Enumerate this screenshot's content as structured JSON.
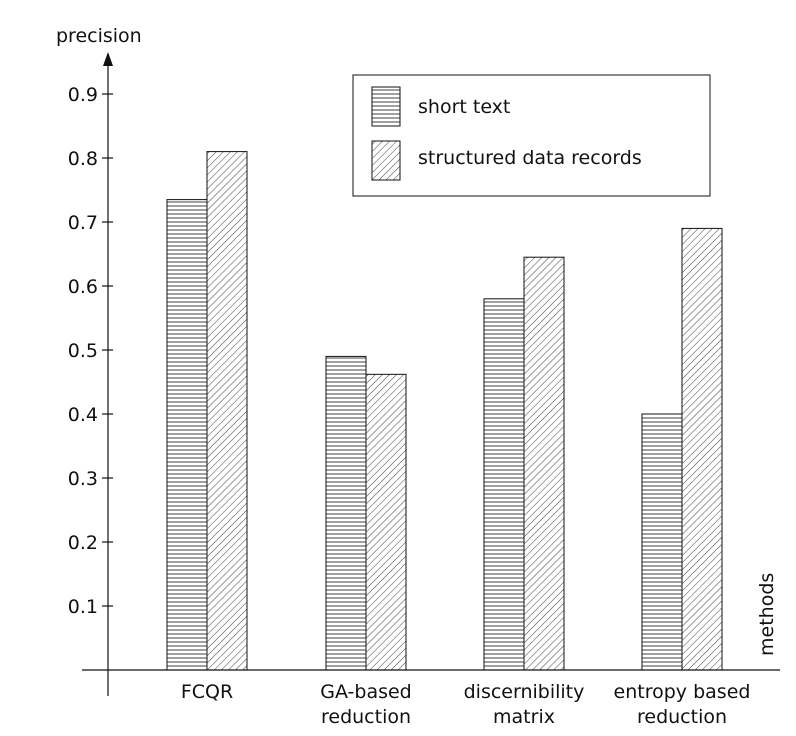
{
  "chart_data": {
    "type": "bar",
    "ylabel": "precision",
    "xlabel": "methods",
    "categories": [
      [
        "FCQR"
      ],
      [
        "GA-based",
        "reduction"
      ],
      [
        "discernibility",
        "matrix"
      ],
      [
        "entropy based",
        "reduction"
      ]
    ],
    "series": [
      {
        "name": "short text",
        "values": [
          0.735,
          0.49,
          0.58,
          0.4
        ],
        "pattern": "horizontal-lines"
      },
      {
        "name": "structured data records",
        "values": [
          0.81,
          0.462,
          0.645,
          0.69
        ],
        "pattern": "diagonal-lines"
      }
    ],
    "yticks": [
      "0.1",
      "0.2",
      "0.3",
      "0.4",
      "0.5",
      "0.6",
      "0.7",
      "0.8",
      "0.9"
    ],
    "ylim": [
      0,
      1.0
    ],
    "grid": false,
    "legend_position": "top-right",
    "colors": {
      "stroke": "#111111",
      "fill": "#ffffff"
    }
  }
}
